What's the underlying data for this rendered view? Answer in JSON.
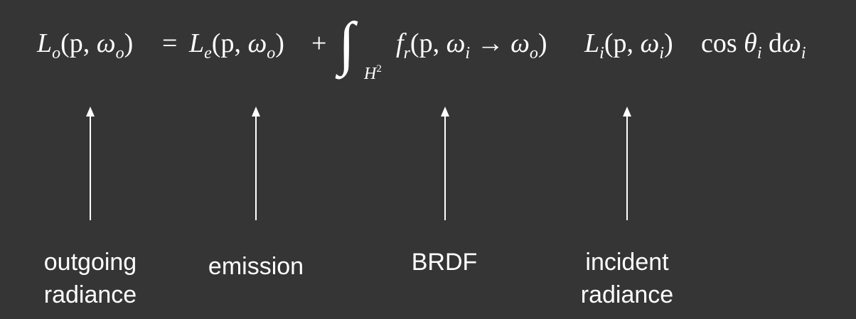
{
  "equation": {
    "L": "L",
    "o": "o",
    "e": "e",
    "f": "f",
    "r": "r",
    "i": "i",
    "p": "p",
    "omega": "ω",
    "theta": "θ",
    "lparen": "(",
    "rparen": ")",
    "comma": ",",
    "equals": "=",
    "plus": "+",
    "arrow": "→",
    "integral": "∫",
    "H": "H",
    "two": "2",
    "cos": "cos",
    "d": "d"
  },
  "labels": {
    "outgoing_radiance_line1": "outgoing",
    "outgoing_radiance_line2": "radiance",
    "emission": "emission",
    "brdf": "BRDF",
    "incident_radiance_line1": "incident",
    "incident_radiance_line2": "radiance"
  }
}
